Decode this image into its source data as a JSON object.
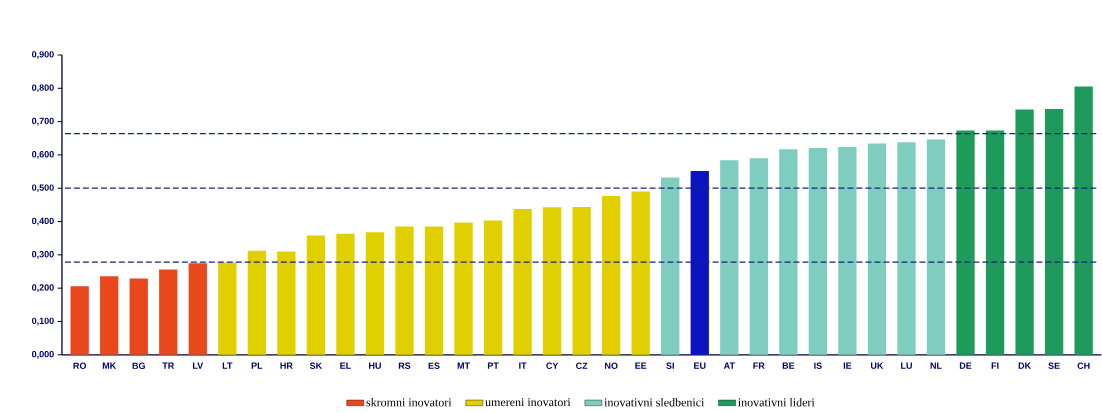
{
  "chart_data": {
    "type": "bar",
    "categories": [
      "RO",
      "MK",
      "BG",
      "TR",
      "LV",
      "LT",
      "PL",
      "HR",
      "SK",
      "EL",
      "HU",
      "RS",
      "ES",
      "MT",
      "PT",
      "IT",
      "CY",
      "CZ",
      "NO",
      "EE",
      "SI",
      "EU",
      "AT",
      "FR",
      "BE",
      "IS",
      "IE",
      "UK",
      "LU",
      "NL",
      "DE",
      "FI",
      "DK",
      "SE",
      "CH"
    ],
    "series": [
      {
        "name": "skromni inovatori",
        "color": "#e8481c",
        "values": [
          0.206,
          0.236,
          0.229,
          0.256,
          0.275,
          null,
          null,
          null,
          null,
          null,
          null,
          null,
          null,
          null,
          null,
          null,
          null,
          null,
          null,
          null,
          null,
          null,
          null,
          null,
          null,
          null,
          null,
          null,
          null,
          null,
          null,
          null,
          null,
          null,
          null
        ]
      },
      {
        "name": "umereni inovatori",
        "color": "#e0d000",
        "values": [
          null,
          null,
          null,
          null,
          null,
          0.277,
          0.312,
          0.31,
          0.358,
          0.363,
          0.368,
          0.385,
          0.385,
          0.397,
          0.403,
          0.438,
          0.443,
          0.444,
          0.477,
          0.49,
          null,
          null,
          null,
          null,
          null,
          null,
          null,
          null,
          null,
          null,
          null,
          null,
          null,
          null,
          null
        ]
      },
      {
        "name": "inovativni sledbenici",
        "color": "#7fcdbf",
        "values": [
          null,
          null,
          null,
          null,
          null,
          null,
          null,
          null,
          null,
          null,
          null,
          null,
          null,
          null,
          null,
          null,
          null,
          null,
          null,
          null,
          0.532,
          null,
          0.584,
          0.59,
          0.617,
          0.621,
          0.624,
          0.634,
          0.638,
          0.646,
          null,
          null,
          null,
          null,
          null
        ]
      },
      {
        "name": "inovativni lideri",
        "color": "#1e9a5a",
        "values": [
          null,
          null,
          null,
          null,
          null,
          null,
          null,
          null,
          null,
          null,
          null,
          null,
          null,
          null,
          null,
          null,
          null,
          null,
          null,
          null,
          null,
          null,
          null,
          null,
          null,
          null,
          null,
          null,
          null,
          null,
          0.673,
          0.673,
          0.736,
          0.738,
          0.805
        ]
      },
      {
        "color": "#0a14c0",
        "values": [
          null,
          null,
          null,
          null,
          null,
          null,
          null,
          null,
          null,
          null,
          null,
          null,
          null,
          null,
          null,
          null,
          null,
          null,
          null,
          null,
          null,
          0.552,
          null,
          null,
          null,
          null,
          null,
          null,
          null,
          null,
          null,
          null,
          null,
          null,
          null
        ]
      }
    ],
    "ylim": [
      0,
      0.9
    ],
    "yticks": [
      {
        "value": 0,
        "label": "0,000"
      },
      {
        "value": 0.1,
        "label": "0,100"
      },
      {
        "value": 0.2,
        "label": "0,200"
      },
      {
        "value": 0.3,
        "label": "0,300"
      },
      {
        "value": 0.4,
        "label": "0,400"
      },
      {
        "value": 0.5,
        "label": "0,500"
      },
      {
        "value": 0.6,
        "label": "0,600"
      },
      {
        "value": 0.7,
        "label": "0,700"
      },
      {
        "value": 0.8,
        "label": "0,800"
      },
      {
        "value": 0.9,
        "label": "0,900"
      }
    ],
    "ref_lines": [
      {
        "axis": "y",
        "value": 0.278,
        "color": "#1a237e",
        "line_style": "dashed"
      },
      {
        "axis": "y",
        "value": 0.5,
        "color": "#1a237e",
        "line_style": "dashed"
      },
      {
        "axis": "y",
        "value": 0.664,
        "color": "#1a237e",
        "line_style": "dashed"
      }
    ],
    "grid": false,
    "legend": "bottom"
  }
}
